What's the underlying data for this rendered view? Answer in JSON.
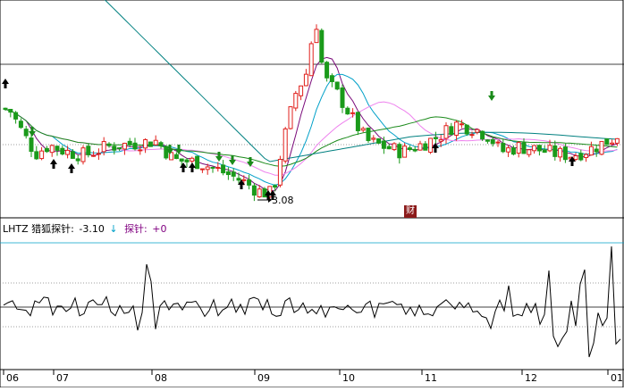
{
  "indicator": {
    "code": "LHTZ",
    "name": "猎狐探针",
    "sep": ":",
    "value": "-3.10",
    "arrow": "↓",
    "probe_label": "探针:",
    "probe_value": "+0"
  },
  "annotation": {
    "low_label": "3.08"
  },
  "badge": {
    "text": "财"
  },
  "colors": {
    "up": "#e0201c",
    "down": "#1a9a1a",
    "ma5": "#7a0a7a",
    "ma10": "#00a0c8",
    "ma20": "#ee82ee",
    "ma30": "#1a8a1a",
    "ma60": "#008080",
    "arrow_up": "#000000",
    "arrow_down": "#1a8a1a"
  },
  "chart_data": [
    {
      "type": "candlestick",
      "x_labels": [
        "06",
        "07",
        "08",
        "09",
        "10",
        "11",
        "12",
        "01"
      ],
      "reference_price": 4.3,
      "price_range": [
        3.0,
        5.5
      ],
      "ohlc_seed": 7,
      "low_point": {
        "label": "3.08"
      }
    },
    {
      "type": "line",
      "name": "LHTZ",
      "current_value": -3.1,
      "probe_value": 0
    }
  ]
}
